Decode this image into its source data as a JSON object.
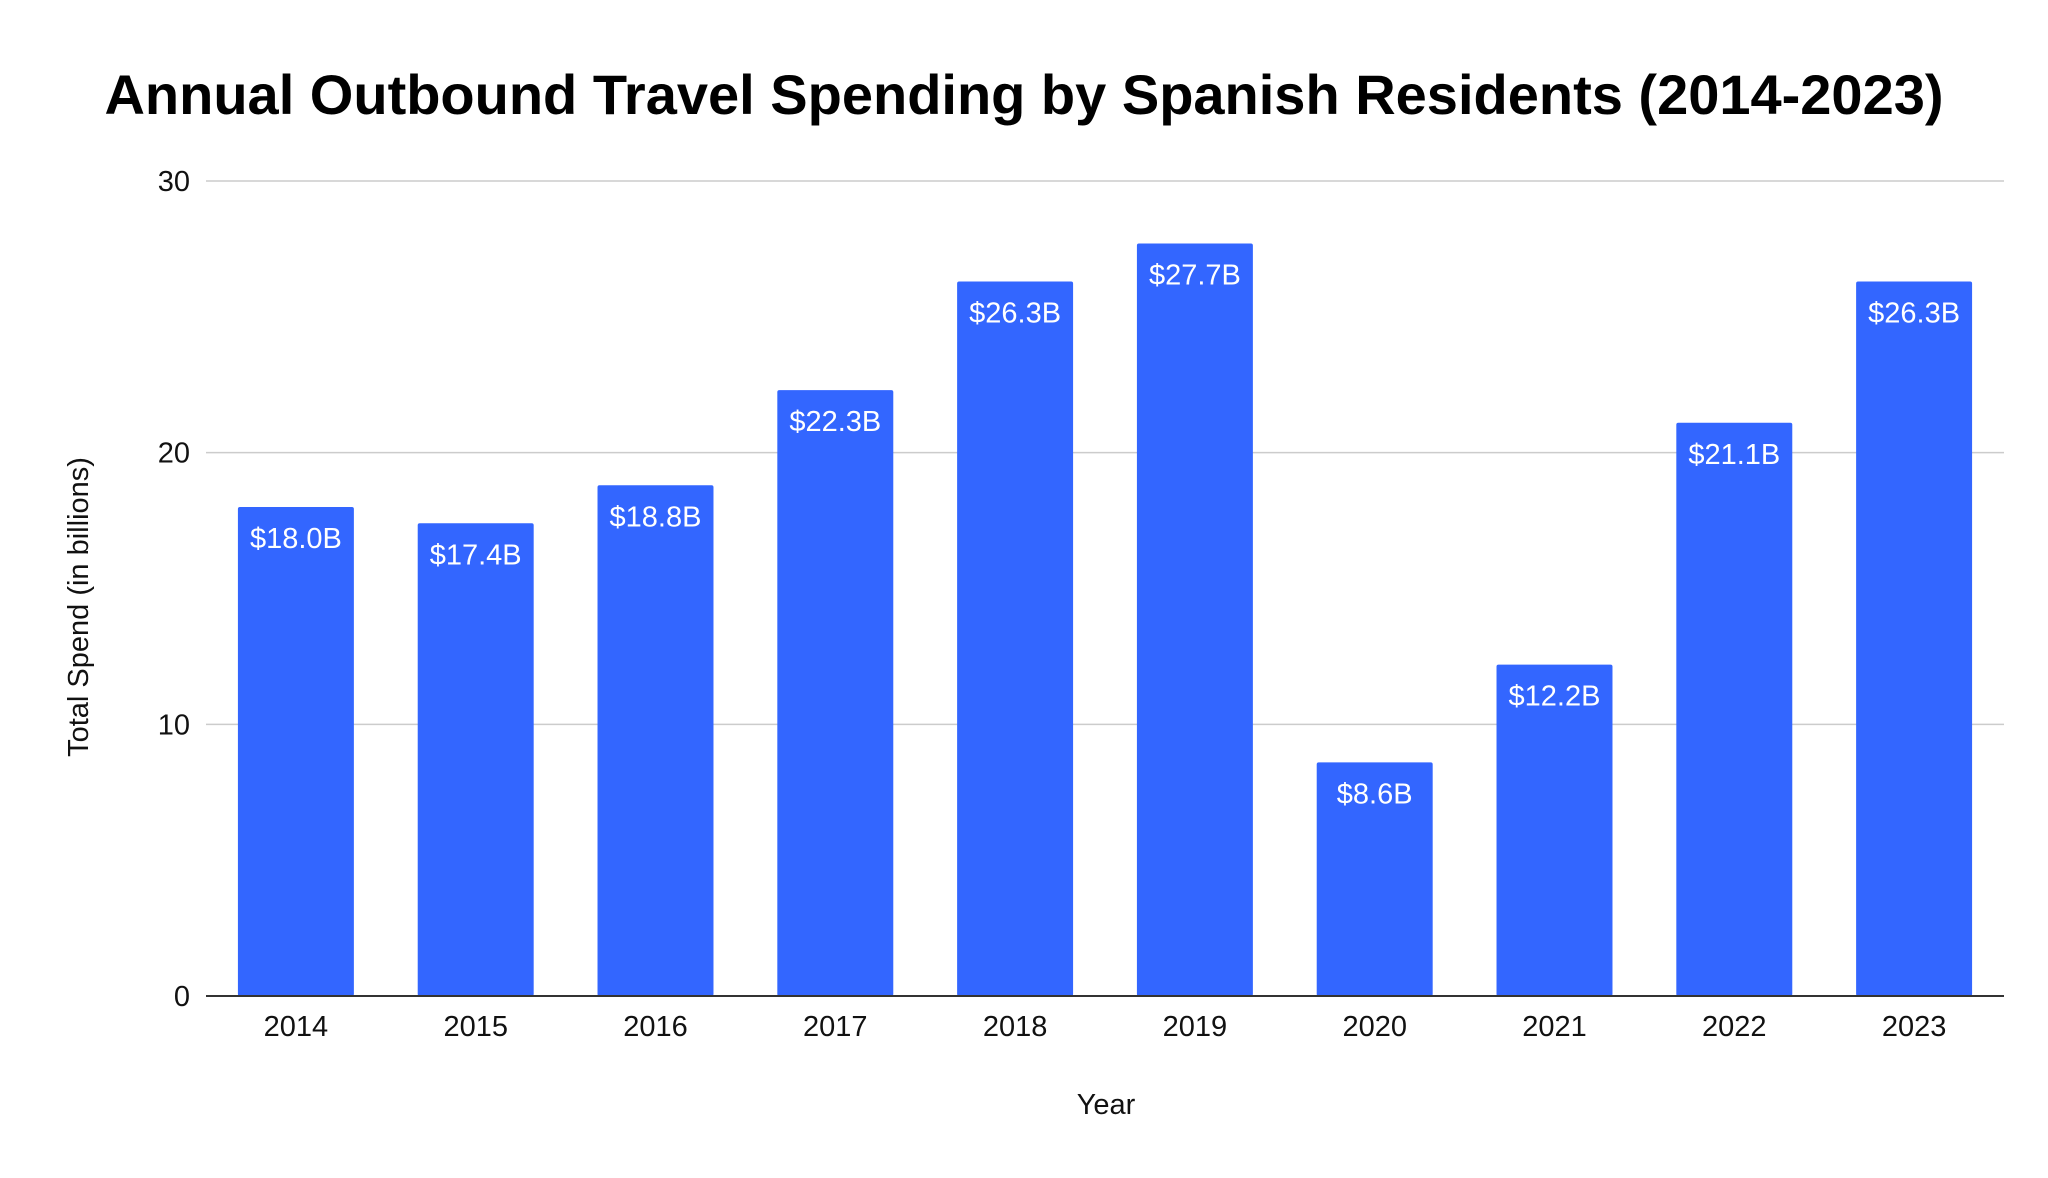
{
  "chart_data": {
    "type": "bar",
    "title": "Annual Outbound Travel Spending by Spanish Residents (2014-2023)",
    "xlabel": "Year",
    "ylabel": "Total Spend (in billions)",
    "categories": [
      "2014",
      "2015",
      "2016",
      "2017",
      "2018",
      "2019",
      "2020",
      "2021",
      "2022",
      "2023"
    ],
    "values": [
      18.0,
      17.4,
      18.8,
      22.3,
      26.3,
      27.7,
      8.6,
      12.2,
      21.1,
      26.3
    ],
    "data_labels": [
      "$18.0B",
      "$17.4B",
      "$18.8B",
      "$22.3B",
      "$26.3B",
      "$27.7B",
      "$8.6B",
      "$12.2B",
      "$21.1B",
      "$26.3B"
    ],
    "ylim": [
      0,
      30
    ],
    "yticks": [
      0,
      10,
      20,
      30
    ],
    "grid": true,
    "legend": "none",
    "bar_color": "#3366ff",
    "grid_color": "#cccccc",
    "axis_color": "#333333"
  }
}
